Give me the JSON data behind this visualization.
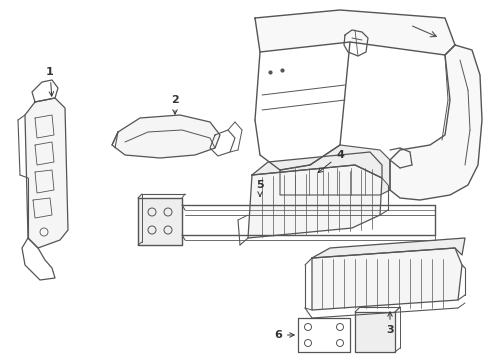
{
  "background_color": "#f0f0f0",
  "line_color": "#555555",
  "line_width": 0.8,
  "fig_width": 4.9,
  "fig_height": 3.6,
  "dpi": 100
}
